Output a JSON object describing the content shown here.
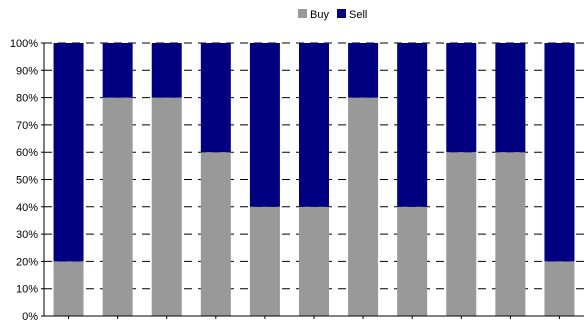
{
  "chart_data": {
    "type": "bar",
    "stacked": true,
    "percent": true,
    "categories": [
      "",
      "",
      "",
      "",
      "",
      "",
      "",
      "",
      "",
      "",
      ""
    ],
    "series": [
      {
        "name": "Buy",
        "color": "#999999",
        "values": [
          20,
          80,
          80,
          60,
          40,
          40,
          80,
          40,
          60,
          60,
          20
        ]
      },
      {
        "name": "Sell",
        "color": "#000080",
        "values": [
          80,
          20,
          20,
          40,
          60,
          60,
          20,
          60,
          40,
          40,
          80
        ]
      }
    ],
    "y_ticks": [
      "0%",
      "10%",
      "20%",
      "30%",
      "40%",
      "50%",
      "60%",
      "70%",
      "80%",
      "90%",
      "100%"
    ],
    "ylim": [
      0,
      100
    ],
    "grid": "dashed horizontal",
    "legend_position": "top-center"
  }
}
